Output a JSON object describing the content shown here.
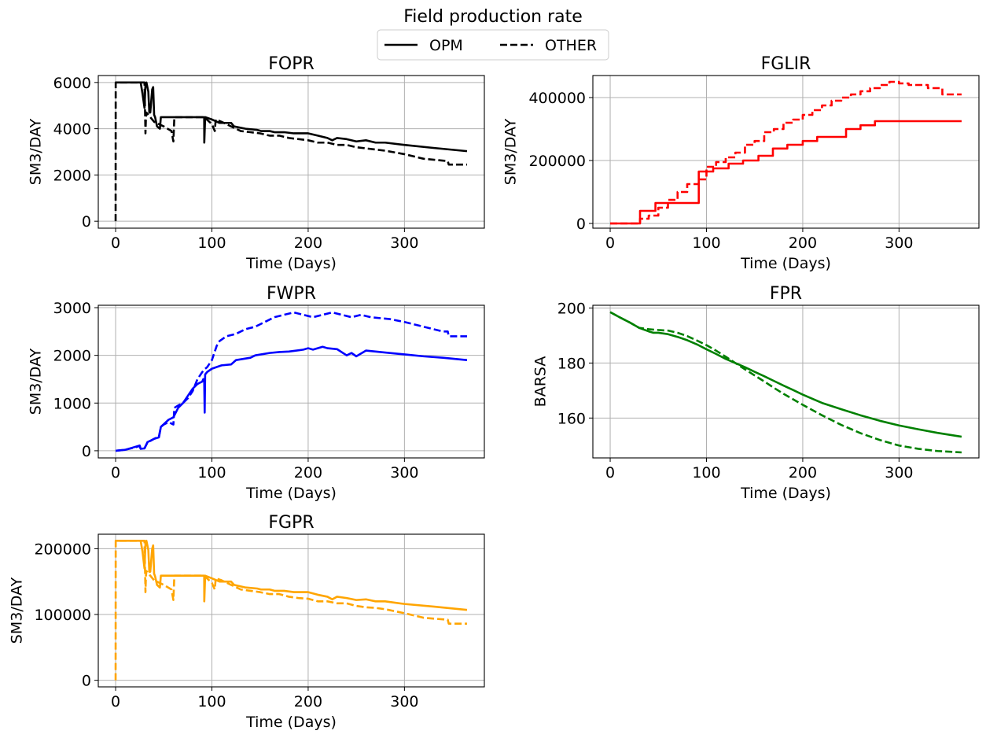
{
  "figure": {
    "title": "Field production rate",
    "legend": {
      "entries": [
        {
          "label": "OPM",
          "style": "solid",
          "color": "#000000"
        },
        {
          "label": "OTHER",
          "style": "dashed",
          "color": "#000000"
        }
      ],
      "placement": "top-center"
    }
  },
  "chart_data": [
    {
      "type": "line",
      "title": "FOPR",
      "xlabel": "Time (Days)",
      "ylabel": "SM3/DAY",
      "xlim": [
        -18,
        383
      ],
      "ylim": [
        -300,
        6300
      ],
      "xticks": [
        0,
        100,
        200,
        300
      ],
      "yticks": [
        0,
        2000,
        4000,
        6000
      ],
      "grid": true,
      "color": "#000000",
      "series": [
        {
          "name": "OPM",
          "style": "solid",
          "x": [
            0,
            26,
            28,
            30,
            31,
            32,
            34,
            35,
            36,
            38,
            39,
            40,
            41,
            43,
            46,
            47,
            60,
            61,
            92,
            92.1,
            93,
            100,
            108,
            120,
            123,
            135,
            147,
            151,
            160,
            165,
            175,
            185,
            195,
            200,
            210,
            220,
            225,
            230,
            240,
            250,
            260,
            270,
            280,
            300,
            330,
            365
          ],
          "y": [
            6000,
            6000,
            5500,
            4900,
            5900,
            6000,
            5600,
            4700,
            4700,
            5700,
            5800,
            4600,
            4500,
            4100,
            4000,
            4500,
            4500,
            4500,
            4500,
            3400,
            4500,
            4400,
            4250,
            4250,
            4100,
            4000,
            3950,
            3900,
            3900,
            3850,
            3850,
            3800,
            3800,
            3800,
            3700,
            3600,
            3500,
            3600,
            3550,
            3450,
            3500,
            3400,
            3400,
            3300,
            3170,
            3030
          ]
        },
        {
          "name": "OTHER",
          "style": "dashed",
          "x": [
            0,
            0.1,
            1,
            30,
            31,
            31.5,
            32,
            40,
            50,
            58,
            60,
            61,
            92,
            100,
            103,
            104,
            110,
            120,
            130,
            140,
            150,
            160,
            170,
            180,
            190,
            200,
            210,
            220,
            230,
            240,
            250,
            260,
            270,
            280,
            300,
            320,
            345,
            346,
            365
          ],
          "y": [
            0,
            6000,
            6000,
            6000,
            3800,
            4500,
            4700,
            4300,
            4100,
            3900,
            3450,
            4500,
            4500,
            4200,
            3900,
            4400,
            4300,
            4100,
            3900,
            3850,
            3800,
            3700,
            3700,
            3600,
            3550,
            3500,
            3400,
            3400,
            3300,
            3300,
            3200,
            3150,
            3100,
            3050,
            2900,
            2700,
            2600,
            2450,
            2450
          ]
        }
      ]
    },
    {
      "type": "line",
      "title": "FGLIR",
      "xlabel": "Time (Days)",
      "ylabel": "SM3/DAY",
      "xlim": [
        -18,
        383
      ],
      "ylim": [
        -15000,
        470000
      ],
      "xticks": [
        0,
        100,
        200,
        300
      ],
      "yticks": [
        0,
        200000,
        400000
      ],
      "grid": true,
      "color": "#ff0000",
      "series": [
        {
          "name": "OPM",
          "style": "solid",
          "x": [
            0,
            31,
            31,
            47,
            47,
            92,
            92,
            107,
            107,
            123,
            123,
            138,
            138,
            154,
            154,
            169,
            169,
            184,
            184,
            200,
            200,
            215,
            215,
            245,
            245,
            260,
            260,
            275,
            275,
            365
          ],
          "y": [
            0,
            0,
            40000,
            40000,
            65000,
            65000,
            165000,
            165000,
            175000,
            175000,
            190000,
            190000,
            200000,
            200000,
            215000,
            215000,
            238000,
            238000,
            250000,
            250000,
            262000,
            262000,
            275000,
            275000,
            300000,
            300000,
            312000,
            312000,
            325000,
            325000
          ]
        },
        {
          "name": "OTHER",
          "style": "dashed",
          "x": [
            0,
            31,
            31,
            40,
            40,
            50,
            50,
            60,
            60,
            70,
            70,
            80,
            80,
            92,
            92,
            100,
            100,
            110,
            110,
            120,
            120,
            130,
            130,
            140,
            140,
            150,
            150,
            160,
            160,
            170,
            170,
            180,
            180,
            190,
            190,
            200,
            200,
            210,
            210,
            220,
            220,
            230,
            230,
            240,
            240,
            250,
            250,
            260,
            260,
            270,
            270,
            280,
            280,
            290,
            290,
            300,
            300,
            310,
            310,
            330,
            330,
            345,
            345,
            365
          ],
          "y": [
            0,
            0,
            15000,
            15000,
            25000,
            25000,
            50000,
            50000,
            75000,
            75000,
            100000,
            100000,
            125000,
            125000,
            140000,
            140000,
            180000,
            180000,
            195000,
            195000,
            210000,
            210000,
            225000,
            225000,
            250000,
            250000,
            262000,
            262000,
            290000,
            290000,
            300000,
            300000,
            320000,
            320000,
            330000,
            330000,
            345000,
            345000,
            360000,
            360000,
            375000,
            375000,
            390000,
            390000,
            400000,
            400000,
            410000,
            410000,
            420000,
            420000,
            430000,
            430000,
            440000,
            440000,
            450000,
            450000,
            445000,
            445000,
            440000,
            440000,
            430000,
            430000,
            410000,
            410000
          ]
        }
      ]
    },
    {
      "type": "line",
      "title": "FWPR",
      "xlabel": "Time (Days)",
      "ylabel": "SM3/DAY",
      "xlim": [
        -18,
        383
      ],
      "ylim": [
        -150,
        3050
      ],
      "xticks": [
        0,
        100,
        200,
        300
      ],
      "yticks": [
        0,
        1000,
        2000,
        3000
      ],
      "grid": true,
      "color": "#0000ff",
      "series": [
        {
          "name": "OPM",
          "style": "solid",
          "x": [
            0,
            10,
            20,
            25,
            26,
            30,
            33,
            40,
            45,
            47,
            55,
            60,
            65,
            70,
            75,
            80,
            85,
            90,
            91,
            92,
            92.5,
            93,
            95,
            100,
            110,
            120,
            125,
            140,
            145,
            160,
            170,
            180,
            195,
            200,
            205,
            215,
            220,
            230,
            240,
            245,
            250,
            260,
            280,
            300,
            320,
            340,
            365
          ],
          "y": [
            0,
            20,
            80,
            110,
            40,
            50,
            180,
            250,
            280,
            500,
            650,
            700,
            900,
            1000,
            1150,
            1300,
            1400,
            1450,
            1500,
            1500,
            800,
            1600,
            1650,
            1720,
            1790,
            1810,
            1900,
            1950,
            2000,
            2050,
            2070,
            2080,
            2120,
            2150,
            2120,
            2180,
            2150,
            2130,
            2000,
            2050,
            1980,
            2100,
            2060,
            2020,
            1980,
            1950,
            1900
          ]
        },
        {
          "name": "OTHER",
          "style": "dashed",
          "x": [
            0,
            10,
            20,
            25,
            26,
            30,
            33,
            40,
            45,
            47,
            50,
            55,
            60,
            61,
            65,
            70,
            75,
            80,
            85,
            90,
            92,
            95,
            100,
            105,
            108,
            115,
            125,
            135,
            145,
            150,
            155,
            165,
            175,
            185,
            195,
            205,
            215,
            225,
            235,
            245,
            255,
            265,
            275,
            285,
            300,
            320,
            340,
            345,
            346,
            365
          ],
          "y": [
            0,
            20,
            70,
            100,
            40,
            50,
            170,
            250,
            300,
            500,
            550,
            600,
            550,
            900,
            950,
            1000,
            1100,
            1250,
            1500,
            1650,
            1700,
            1750,
            1900,
            2200,
            2300,
            2400,
            2450,
            2550,
            2600,
            2650,
            2700,
            2800,
            2850,
            2900,
            2850,
            2800,
            2850,
            2900,
            2850,
            2800,
            2850,
            2800,
            2780,
            2760,
            2700,
            2600,
            2500,
            2500,
            2400,
            2400
          ]
        }
      ]
    },
    {
      "type": "line",
      "title": "FPR",
      "xlabel": "Time (Days)",
      "ylabel": "BARSA",
      "xlim": [
        -18,
        383
      ],
      "ylim": [
        145.5,
        201
      ],
      "xticks": [
        0,
        100,
        200,
        300
      ],
      "yticks": [
        160,
        180,
        200
      ],
      "grid": true,
      "color": "#008000",
      "series": [
        {
          "name": "OPM",
          "style": "solid",
          "x": [
            0,
            10,
            20,
            30,
            40,
            45,
            50,
            60,
            70,
            80,
            90,
            100,
            110,
            120,
            130,
            140,
            150,
            160,
            170,
            180,
            190,
            200,
            220,
            240,
            260,
            280,
            300,
            320,
            340,
            365
          ],
          "y": [
            198.5,
            196.6,
            194.8,
            192.8,
            191.5,
            191.0,
            191.0,
            190.5,
            189.5,
            188.3,
            186.8,
            185.0,
            183.3,
            181.5,
            180.0,
            178.5,
            176.8,
            175.2,
            173.5,
            171.8,
            170.2,
            168.5,
            165.5,
            163.2,
            161.0,
            159.0,
            157.3,
            155.9,
            154.6,
            153.2
          ]
        },
        {
          "name": "OTHER",
          "style": "dashed",
          "x": [
            0,
            10,
            20,
            30,
            40,
            50,
            60,
            70,
            80,
            90,
            100,
            110,
            120,
            130,
            140,
            150,
            160,
            170,
            180,
            200,
            220,
            240,
            260,
            280,
            300,
            320,
            340,
            365
          ],
          "y": [
            198.5,
            196.6,
            194.8,
            192.8,
            192.3,
            192.0,
            191.8,
            191.0,
            189.8,
            188.2,
            186.5,
            184.5,
            182.3,
            180.0,
            177.7,
            175.5,
            173.3,
            171.0,
            168.8,
            164.8,
            161.0,
            157.5,
            154.5,
            152.0,
            150.0,
            148.8,
            148.0,
            147.5
          ]
        }
      ]
    },
    {
      "type": "line",
      "title": "FGPR",
      "xlabel": "Time (Days)",
      "ylabel": "SM3/DAY",
      "xlim": [
        -18,
        383
      ],
      "ylim": [
        -10000,
        222000
      ],
      "xticks": [
        0,
        100,
        200,
        300
      ],
      "yticks": [
        0,
        100000,
        200000
      ],
      "grid": true,
      "color": "#ffa500",
      "series": [
        {
          "name": "OPM",
          "style": "solid",
          "x": [
            0,
            26,
            28,
            30,
            31,
            32,
            34,
            35,
            36,
            38,
            39,
            40,
            41,
            43,
            46,
            47,
            60,
            61,
            92,
            92.1,
            93,
            100,
            108,
            120,
            123,
            135,
            147,
            151,
            160,
            165,
            175,
            185,
            195,
            200,
            210,
            220,
            225,
            230,
            240,
            250,
            260,
            270,
            280,
            300,
            330,
            365
          ],
          "y": [
            212000,
            212000,
            195000,
            170000,
            208000,
            212000,
            198000,
            165000,
            165000,
            200000,
            205000,
            162000,
            158000,
            145000,
            141000,
            159000,
            159000,
            159000,
            159000,
            120000,
            159000,
            155000,
            150000,
            150000,
            145000,
            141000,
            139500,
            138000,
            138000,
            136000,
            136000,
            134000,
            134000,
            134000,
            130000,
            127000,
            123000,
            127000,
            125000,
            122000,
            123000,
            120000,
            120000,
            116000,
            112000,
            107000
          ]
        },
        {
          "name": "OTHER",
          "style": "dashed",
          "x": [
            0,
            0.1,
            1,
            30,
            31,
            31.5,
            32,
            40,
            50,
            58,
            60,
            61,
            92,
            100,
            103,
            104,
            110,
            120,
            130,
            140,
            150,
            160,
            170,
            180,
            190,
            200,
            210,
            220,
            230,
            240,
            250,
            260,
            270,
            280,
            300,
            320,
            345,
            346,
            365
          ],
          "y": [
            0,
            212000,
            212000,
            212000,
            134000,
            159000,
            166000,
            152000,
            145000,
            138000,
            122000,
            159000,
            159000,
            148000,
            138000,
            155000,
            152000,
            145000,
            138000,
            136000,
            134000,
            131000,
            131000,
            127000,
            125000,
            124000,
            120000,
            120000,
            117000,
            117000,
            113000,
            111000,
            110000,
            108000,
            102000,
            95000,
            92000,
            86000,
            86000
          ]
        }
      ]
    }
  ]
}
